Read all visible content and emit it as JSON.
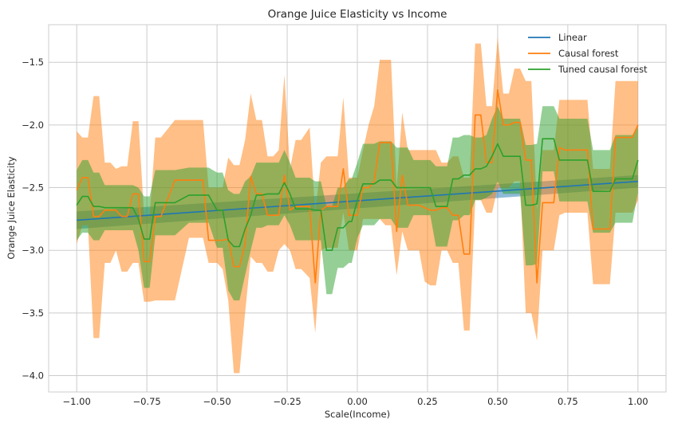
{
  "chart_data": {
    "type": "line",
    "title": "Orange Juice Elasticity vs Income",
    "xlabel": "Scale(Income)",
    "ylabel": "Orange Juice Elasticity",
    "xlim": [
      -1.1,
      1.1
    ],
    "ylim": [
      -4.13,
      -1.2
    ],
    "xticks": [
      -1.0,
      -0.75,
      -0.5,
      -0.25,
      0.0,
      0.25,
      0.5,
      0.75,
      1.0
    ],
    "xtick_labels": [
      "−1.00",
      "−0.75",
      "−0.50",
      "−0.25",
      "0.00",
      "0.25",
      "0.50",
      "0.75",
      "1.00"
    ],
    "yticks": [
      -4.0,
      -3.5,
      -3.0,
      -2.5,
      -2.0,
      -1.5
    ],
    "ytick_labels": [
      "−4.0",
      "−3.5",
      "−3.0",
      "−2.5",
      "−2.0",
      "−1.5"
    ],
    "grid": true,
    "legend_position": "top-right",
    "series": [
      {
        "name": "Linear",
        "color": "#1f77b4",
        "x": [
          -1.0,
          1.0
        ],
        "y": [
          -2.76,
          -2.45
        ],
        "lower": [
          -2.83,
          -2.5
        ],
        "upper": [
          -2.69,
          -2.4
        ]
      },
      {
        "name": "Causal forest",
        "color": "#ff7f0e",
        "x": [
          -1.0,
          -0.98,
          -0.96,
          -0.94,
          -0.92,
          -0.9,
          -0.88,
          -0.86,
          -0.84,
          -0.82,
          -0.8,
          -0.78,
          -0.76,
          -0.74,
          -0.72,
          -0.7,
          -0.65,
          -0.6,
          -0.55,
          -0.53,
          -0.5,
          -0.48,
          -0.46,
          -0.44,
          -0.42,
          -0.4,
          -0.38,
          -0.36,
          -0.34,
          -0.32,
          -0.3,
          -0.28,
          -0.26,
          -0.24,
          -0.22,
          -0.2,
          -0.17,
          -0.15,
          -0.13,
          -0.11,
          -0.09,
          -0.07,
          -0.05,
          -0.03,
          -0.02,
          0.0,
          0.02,
          0.04,
          0.06,
          0.08,
          0.1,
          0.12,
          0.14,
          0.16,
          0.18,
          0.2,
          0.22,
          0.24,
          0.26,
          0.28,
          0.3,
          0.32,
          0.34,
          0.36,
          0.38,
          0.4,
          0.42,
          0.44,
          0.46,
          0.48,
          0.5,
          0.52,
          0.54,
          0.56,
          0.58,
          0.6,
          0.62,
          0.64,
          0.66,
          0.68,
          0.7,
          0.72,
          0.74,
          0.76,
          0.78,
          0.8,
          0.82,
          0.84,
          0.86,
          0.88,
          0.9,
          0.92,
          0.94,
          0.96,
          0.98,
          1.0
        ],
        "y": [
          -2.52,
          -2.42,
          -2.42,
          -2.73,
          -2.73,
          -2.68,
          -2.68,
          -2.68,
          -2.73,
          -2.73,
          -2.55,
          -2.55,
          -3.09,
          -3.09,
          -2.73,
          -2.73,
          -2.44,
          -2.44,
          -2.44,
          -2.92,
          -2.92,
          -2.92,
          -2.91,
          -3.13,
          -3.13,
          -2.95,
          -2.41,
          -2.55,
          -2.55,
          -2.72,
          -2.72,
          -2.72,
          -2.4,
          -2.68,
          -2.65,
          -2.65,
          -2.65,
          -3.26,
          -2.68,
          -2.65,
          -2.65,
          -2.65,
          -2.35,
          -2.72,
          -2.72,
          -2.72,
          -2.5,
          -2.5,
          -2.45,
          -2.14,
          -2.14,
          -2.14,
          -2.85,
          -2.4,
          -2.64,
          -2.64,
          -2.64,
          -2.66,
          -2.68,
          -2.68,
          -2.66,
          -2.66,
          -2.72,
          -2.72,
          -3.03,
          -3.03,
          -1.92,
          -1.92,
          -2.3,
          -2.3,
          -1.72,
          -2.0,
          -2.0,
          -1.98,
          -1.98,
          -2.28,
          -2.28,
          -3.26,
          -2.62,
          -2.62,
          -2.62,
          -2.18,
          -2.2,
          -2.2,
          -2.2,
          -2.2,
          -2.2,
          -2.83,
          -2.83,
          -2.83,
          -2.83,
          -2.1,
          -2.1,
          -2.1,
          -2.1,
          -2.0
        ],
        "lower": [
          -2.95,
          -2.8,
          -2.8,
          -3.7,
          -3.7,
          -3.1,
          -3.1,
          -3.0,
          -3.17,
          -3.17,
          -3.1,
          -3.1,
          -3.41,
          -3.41,
          -3.4,
          -3.4,
          -3.4,
          -2.9,
          -2.9,
          -3.1,
          -3.1,
          -3.15,
          -3.4,
          -3.98,
          -3.98,
          -3.5,
          -3.05,
          -3.1,
          -3.1,
          -3.17,
          -3.17,
          -3.0,
          -2.95,
          -3.0,
          -3.15,
          -3.15,
          -3.22,
          -3.66,
          -3.0,
          -2.98,
          -2.98,
          -2.98,
          -2.7,
          -3.0,
          -3.0,
          -3.0,
          -2.75,
          -2.75,
          -2.75,
          -2.75,
          -2.8,
          -2.8,
          -3.2,
          -2.85,
          -3.0,
          -3.0,
          -3.0,
          -3.25,
          -3.28,
          -3.28,
          -3.0,
          -3.0,
          -3.1,
          -3.1,
          -3.64,
          -3.64,
          -2.6,
          -2.6,
          -2.7,
          -2.7,
          -2.5,
          -2.5,
          -2.5,
          -2.45,
          -2.45,
          -3.5,
          -3.5,
          -3.72,
          -3.0,
          -3.0,
          -3.0,
          -2.72,
          -2.7,
          -2.7,
          -2.7,
          -2.7,
          -2.7,
          -3.27,
          -3.27,
          -3.27,
          -3.27,
          -2.7,
          -2.7,
          -2.7,
          -2.7,
          -2.6
        ],
        "upper": [
          -2.05,
          -2.1,
          -2.1,
          -1.77,
          -1.77,
          -2.3,
          -2.3,
          -2.35,
          -2.33,
          -2.33,
          -1.97,
          -1.97,
          -2.72,
          -2.72,
          -2.1,
          -2.1,
          -1.96,
          -1.96,
          -1.96,
          -2.5,
          -2.5,
          -2.5,
          -2.26,
          -2.32,
          -2.32,
          -2.12,
          -1.75,
          -1.96,
          -1.96,
          -2.25,
          -2.25,
          -2.2,
          -1.6,
          -2.35,
          -2.12,
          -2.12,
          -2.02,
          -2.7,
          -2.3,
          -2.25,
          -2.25,
          -2.25,
          -1.78,
          -2.42,
          -2.42,
          -2.42,
          -2.2,
          -2.0,
          -1.85,
          -1.48,
          -1.48,
          -1.48,
          -2.5,
          -1.9,
          -2.2,
          -2.2,
          -2.2,
          -2.2,
          -2.2,
          -2.2,
          -2.3,
          -2.3,
          -2.25,
          -2.25,
          -2.42,
          -2.42,
          -1.35,
          -1.35,
          -1.85,
          -1.85,
          -1.3,
          -1.75,
          -1.75,
          -1.55,
          -1.55,
          -1.65,
          -1.65,
          -2.67,
          -2.2,
          -2.2,
          -2.2,
          -1.8,
          -1.8,
          -1.8,
          -1.8,
          -1.8,
          -1.8,
          -2.35,
          -2.35,
          -2.35,
          -2.35,
          -1.65,
          -1.65,
          -1.65,
          -1.65,
          -1.65
        ]
      },
      {
        "name": "Tuned causal forest",
        "color": "#2ca02c",
        "x": [
          -1.0,
          -0.98,
          -0.96,
          -0.94,
          -0.92,
          -0.9,
          -0.88,
          -0.86,
          -0.84,
          -0.82,
          -0.8,
          -0.78,
          -0.76,
          -0.74,
          -0.72,
          -0.7,
          -0.65,
          -0.6,
          -0.55,
          -0.53,
          -0.5,
          -0.48,
          -0.46,
          -0.44,
          -0.42,
          -0.4,
          -0.38,
          -0.36,
          -0.34,
          -0.32,
          -0.3,
          -0.28,
          -0.26,
          -0.24,
          -0.22,
          -0.2,
          -0.17,
          -0.15,
          -0.13,
          -0.11,
          -0.09,
          -0.07,
          -0.05,
          -0.03,
          -0.02,
          0.0,
          0.02,
          0.04,
          0.06,
          0.08,
          0.1,
          0.12,
          0.14,
          0.16,
          0.18,
          0.2,
          0.22,
          0.24,
          0.26,
          0.28,
          0.3,
          0.32,
          0.34,
          0.36,
          0.38,
          0.4,
          0.42,
          0.44,
          0.46,
          0.48,
          0.5,
          0.52,
          0.54,
          0.56,
          0.58,
          0.6,
          0.62,
          0.64,
          0.66,
          0.68,
          0.7,
          0.72,
          0.74,
          0.76,
          0.78,
          0.8,
          0.82,
          0.84,
          0.86,
          0.88,
          0.9,
          0.92,
          0.94,
          0.96,
          0.98,
          1.0
        ],
        "y": [
          -2.64,
          -2.57,
          -2.57,
          -2.65,
          -2.65,
          -2.66,
          -2.66,
          -2.66,
          -2.66,
          -2.66,
          -2.66,
          -2.75,
          -2.91,
          -2.91,
          -2.62,
          -2.62,
          -2.62,
          -2.56,
          -2.56,
          -2.56,
          -2.68,
          -2.68,
          -2.92,
          -2.97,
          -2.97,
          -2.83,
          -2.72,
          -2.56,
          -2.56,
          -2.55,
          -2.55,
          -2.55,
          -2.46,
          -2.55,
          -2.67,
          -2.67,
          -2.67,
          -2.68,
          -2.68,
          -3.0,
          -3.0,
          -2.82,
          -2.82,
          -2.77,
          -2.77,
          -2.6,
          -2.47,
          -2.47,
          -2.47,
          -2.44,
          -2.44,
          -2.44,
          -2.5,
          -2.5,
          -2.5,
          -2.5,
          -2.5,
          -2.5,
          -2.5,
          -2.65,
          -2.65,
          -2.65,
          -2.43,
          -2.43,
          -2.4,
          -2.4,
          -2.35,
          -2.35,
          -2.33,
          -2.25,
          -2.15,
          -2.25,
          -2.25,
          -2.25,
          -2.25,
          -2.64,
          -2.64,
          -2.63,
          -2.11,
          -2.11,
          -2.11,
          -2.28,
          -2.28,
          -2.28,
          -2.28,
          -2.28,
          -2.28,
          -2.53,
          -2.53,
          -2.53,
          -2.53,
          -2.43,
          -2.43,
          -2.43,
          -2.43,
          -2.28
        ],
        "upper": [
          -2.36,
          -2.28,
          -2.28,
          -2.38,
          -2.38,
          -2.48,
          -2.48,
          -2.48,
          -2.48,
          -2.48,
          -2.48,
          -2.5,
          -2.57,
          -2.57,
          -2.36,
          -2.36,
          -2.36,
          -2.34,
          -2.34,
          -2.34,
          -2.38,
          -2.38,
          -2.52,
          -2.55,
          -2.55,
          -2.45,
          -2.41,
          -2.3,
          -2.3,
          -2.3,
          -2.3,
          -2.3,
          -2.2,
          -2.3,
          -2.42,
          -2.42,
          -2.42,
          -2.45,
          -2.45,
          -2.65,
          -2.65,
          -2.5,
          -2.5,
          -2.43,
          -2.43,
          -2.3,
          -2.15,
          -2.15,
          -2.15,
          -2.13,
          -2.13,
          -2.13,
          -2.18,
          -2.18,
          -2.18,
          -2.28,
          -2.28,
          -2.28,
          -2.28,
          -2.33,
          -2.33,
          -2.33,
          -2.1,
          -2.1,
          -2.08,
          -2.08,
          -2.1,
          -2.1,
          -2.08,
          -1.95,
          -1.85,
          -1.95,
          -1.95,
          -1.95,
          -1.95,
          -2.16,
          -2.16,
          -2.15,
          -1.85,
          -1.85,
          -1.85,
          -1.95,
          -1.95,
          -1.95,
          -1.95,
          -1.95,
          -1.95,
          -2.2,
          -2.2,
          -2.2,
          -2.2,
          -2.08,
          -2.08,
          -2.08,
          -2.08,
          -2.02
        ],
        "lower": [
          -2.92,
          -2.86,
          -2.86,
          -2.92,
          -2.92,
          -2.84,
          -2.84,
          -2.84,
          -2.84,
          -2.84,
          -2.84,
          -3.0,
          -3.3,
          -3.3,
          -2.88,
          -2.88,
          -2.88,
          -2.78,
          -2.78,
          -2.78,
          -2.98,
          -2.98,
          -3.32,
          -3.4,
          -3.4,
          -3.2,
          -3.0,
          -2.82,
          -2.82,
          -2.8,
          -2.8,
          -2.8,
          -2.72,
          -2.8,
          -2.92,
          -2.92,
          -2.92,
          -2.92,
          -2.92,
          -3.35,
          -3.35,
          -3.14,
          -3.14,
          -3.1,
          -3.1,
          -2.9,
          -2.8,
          -2.8,
          -2.8,
          -2.75,
          -2.75,
          -2.75,
          -2.82,
          -2.82,
          -2.82,
          -2.72,
          -2.72,
          -2.72,
          -2.72,
          -2.97,
          -2.97,
          -2.97,
          -2.76,
          -2.76,
          -2.72,
          -2.72,
          -2.6,
          -2.6,
          -2.58,
          -2.55,
          -2.45,
          -2.55,
          -2.55,
          -2.55,
          -2.55,
          -3.12,
          -3.12,
          -3.11,
          -2.37,
          -2.37,
          -2.37,
          -2.61,
          -2.61,
          -2.61,
          -2.61,
          -2.61,
          -2.61,
          -2.86,
          -2.86,
          -2.86,
          -2.86,
          -2.78,
          -2.78,
          -2.78,
          -2.78,
          -2.54
        ]
      }
    ]
  }
}
